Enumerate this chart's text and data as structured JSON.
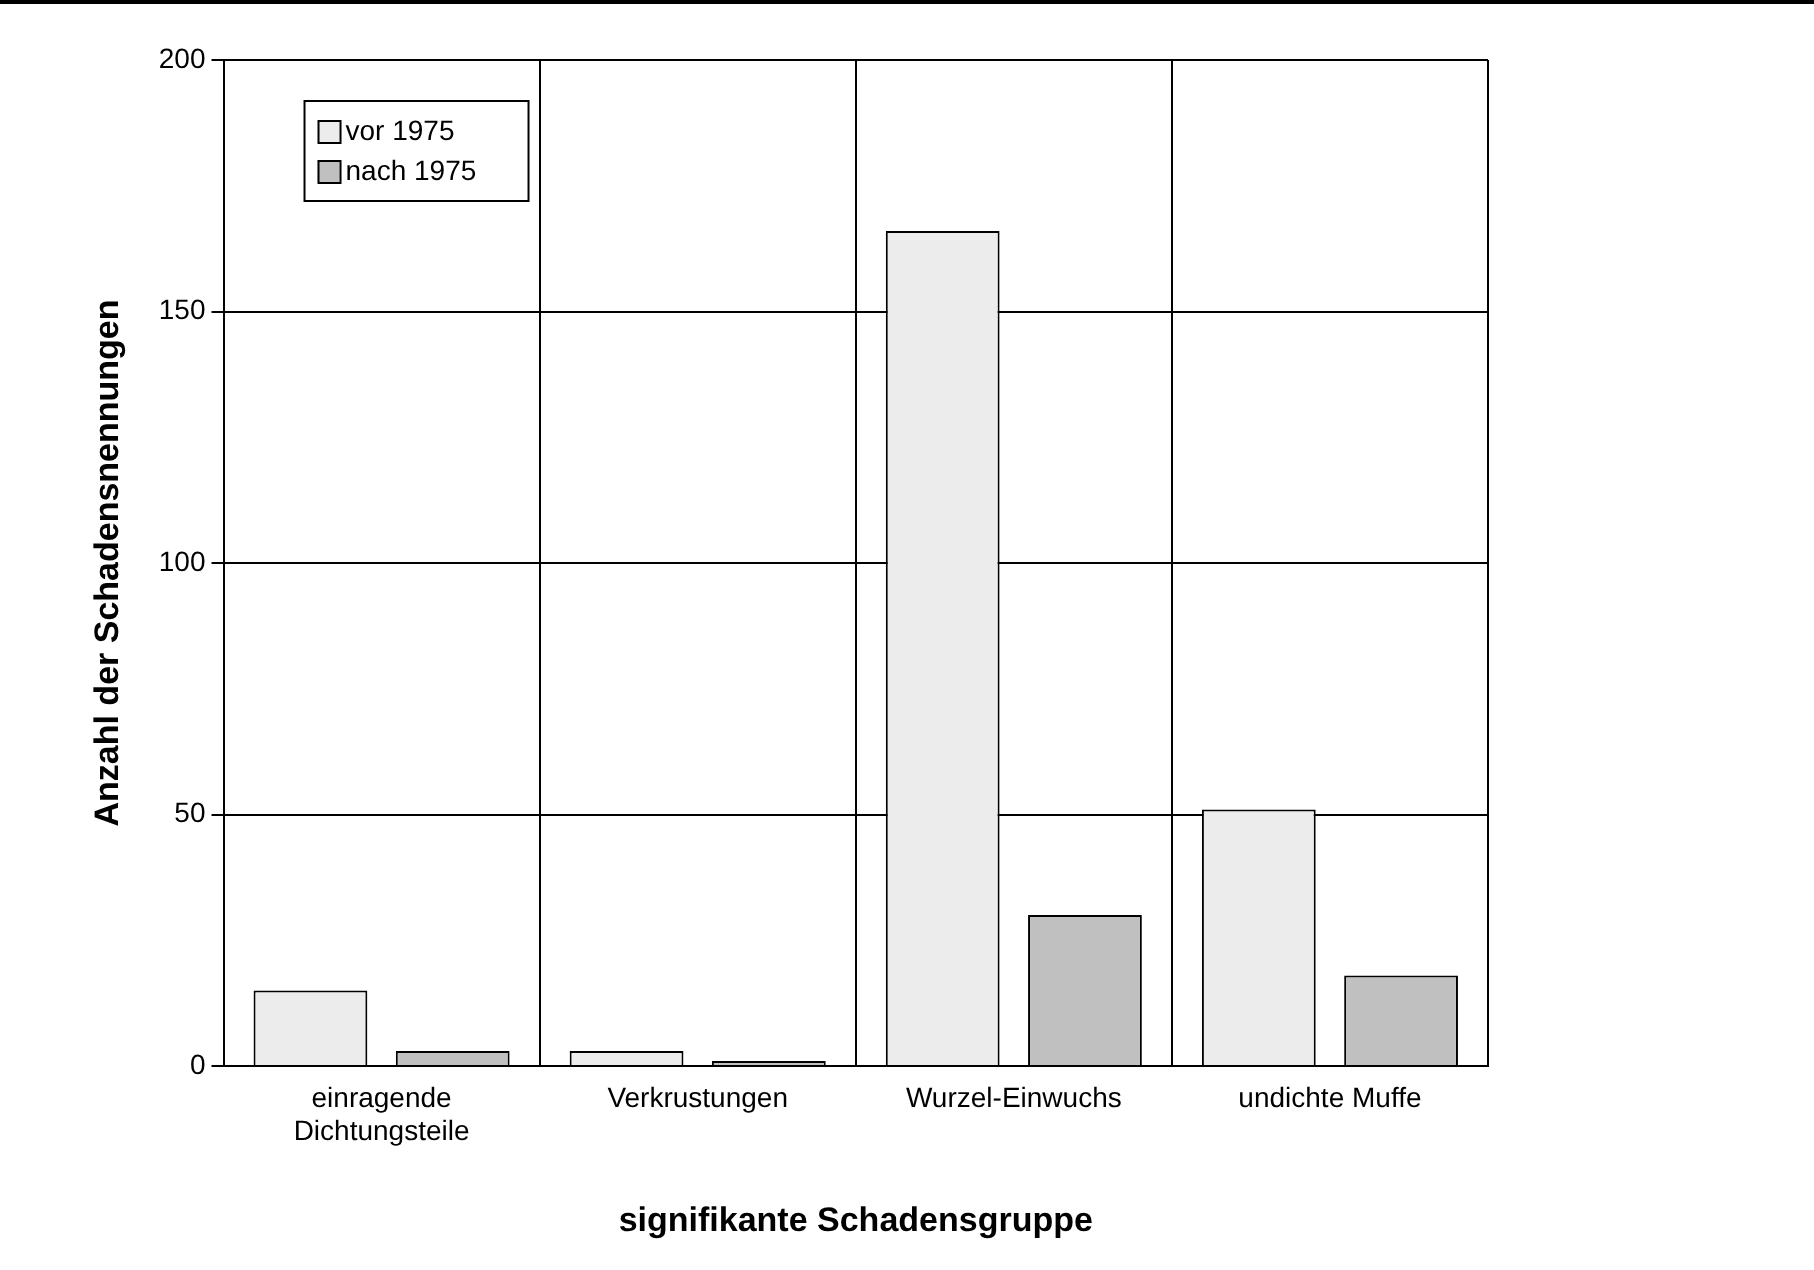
{
  "chart_data": {
    "type": "bar",
    "xlabel": "signifikante Schadensgruppe",
    "ylabel": "Anzahl der Schadensnennungen",
    "categories": [
      "einragende\nDichtungsteile",
      "Verkrustungen",
      "Wurzel-Einwuchs",
      "undichte Muffe"
    ],
    "series": [
      {
        "name": "vor 1975",
        "color": "#ececec",
        "values": [
          15,
          3,
          166,
          51
        ]
      },
      {
        "name": "nach 1975",
        "color": "#c0c0c0",
        "values": [
          3,
          1,
          30,
          18
        ]
      }
    ],
    "ylim": [
      0,
      200
    ],
    "yticks": [
      0,
      50,
      100,
      150,
      200
    ],
    "grid": true,
    "legend": "top left"
  }
}
